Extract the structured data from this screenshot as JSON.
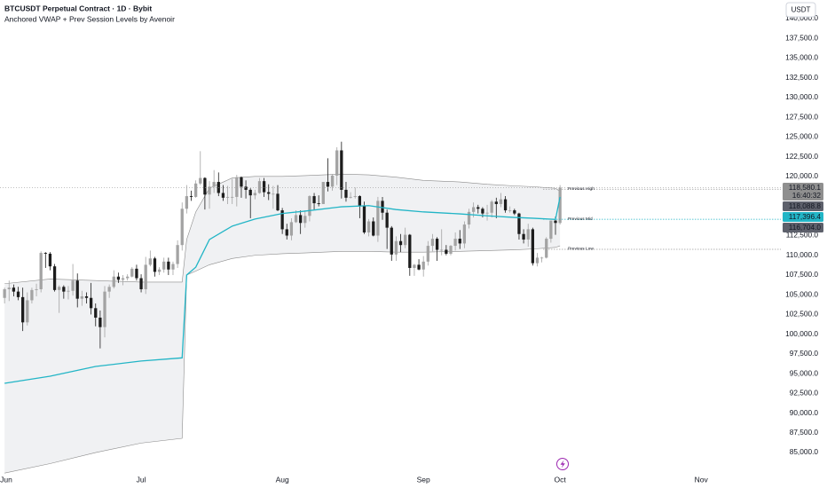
{
  "chart_data": {
    "type": "candlestick",
    "title": "BTCUSDT Perpetual Contract · 1D · Bybit",
    "subtitle": "Anchored VWAP + Prev Session Levels by Avenoir",
    "currency": "USDT",
    "countdown": "16:40:32",
    "up_color": "#a3a3a3",
    "down_color": "#1c1c1c",
    "xlim": [
      -1,
      170.5
    ],
    "xticks": [
      {
        "value": 0,
        "label": "Jun"
      },
      {
        "value": 30,
        "label": "Jul"
      },
      {
        "value": 61,
        "label": "Aug"
      },
      {
        "value": 92,
        "label": "Sep"
      },
      {
        "value": 122,
        "label": "Oct"
      },
      {
        "value": 153,
        "label": "Nov"
      }
    ],
    "ylim": [
      82530,
      142360
    ],
    "yticks": [
      {
        "value": 85000,
        "label": "85,000.0"
      },
      {
        "value": 87500,
        "label": "87,500.0"
      },
      {
        "value": 90000,
        "label": "90,000.0"
      },
      {
        "value": 92500,
        "label": "92,500.0"
      },
      {
        "value": 95000,
        "label": "95,000.0"
      },
      {
        "value": 97500,
        "label": "97,500.0"
      },
      {
        "value": 100000,
        "label": "100,000.0"
      },
      {
        "value": 102500,
        "label": "102,500.0"
      },
      {
        "value": 105000,
        "label": "105,000.0"
      },
      {
        "value": 107500,
        "label": "107,500.0"
      },
      {
        "value": 110000,
        "label": "110,000.0"
      },
      {
        "value": 112500,
        "label": "112,500.0"
      },
      {
        "value": 115000,
        "label": "115,000.0"
      },
      {
        "value": 117500,
        "label": "117,500.0"
      },
      {
        "value": 120000,
        "label": "120,000.0"
      },
      {
        "value": 122500,
        "label": "122,500.0"
      },
      {
        "value": 125000,
        "label": "125,000.0"
      },
      {
        "value": 127500,
        "label": "127,500.0"
      },
      {
        "value": 130000,
        "label": "130,000.0"
      },
      {
        "value": 132500,
        "label": "132,500.0"
      },
      {
        "value": 135000,
        "label": "135,000.0"
      },
      {
        "value": 137500,
        "label": "137,500.0"
      },
      {
        "value": 140000,
        "label": "140,000.0"
      }
    ],
    "x": [
      0,
      1,
      2,
      3,
      4,
      5,
      6,
      7,
      8,
      9,
      10,
      11,
      12,
      13,
      14,
      15,
      16,
      17,
      18,
      19,
      20,
      21,
      22,
      23,
      24,
      25,
      26,
      27,
      28,
      29,
      30,
      31,
      32,
      33,
      34,
      35,
      36,
      37,
      38,
      39,
      40,
      41,
      42,
      43,
      44,
      45,
      46,
      47,
      48,
      49,
      50,
      51,
      52,
      53,
      54,
      55,
      56,
      57,
      58,
      59,
      60,
      61,
      62,
      63,
      64,
      65,
      66,
      67,
      68,
      69,
      70,
      71,
      72,
      73,
      74,
      75,
      76,
      77,
      78,
      79,
      80,
      81,
      82,
      83,
      84,
      85,
      86,
      87,
      88,
      89,
      90,
      91,
      92,
      93,
      94,
      95,
      96,
      97,
      98,
      99,
      100,
      101,
      102,
      103,
      104,
      105,
      106,
      107,
      108,
      109,
      110,
      111,
      112,
      113,
      114,
      115,
      116,
      117,
      118,
      119,
      120,
      121,
      122
    ],
    "open": [
      104600,
      105700,
      105900,
      105400,
      104700,
      101500,
      104300,
      105600,
      105700,
      110300,
      110200,
      108600,
      105600,
      106000,
      105400,
      105500,
      106800,
      104500,
      104800,
      104600,
      103300,
      102100,
      100900,
      105400,
      106000,
      107300,
      106900,
      107100,
      107300,
      108300,
      107100,
      105700,
      108800,
      109600,
      107900,
      108200,
      109200,
      108200,
      108900,
      111300,
      115900,
      117500,
      117400,
      119100,
      119800,
      117700,
      118700,
      119300,
      117900,
      117300,
      117400,
      117400,
      119900,
      118700,
      118300,
      117600,
      117900,
      119400,
      118000,
      117800,
      117800,
      115700,
      113300,
      112500,
      114200,
      115100,
      114100,
      115000,
      117500,
      116600,
      116500,
      119300,
      118700,
      120100,
      123300,
      118300,
      117300,
      117400,
      117500,
      116300,
      112900,
      114300,
      112500,
      116900,
      115400,
      113500,
      110100,
      111800,
      111300,
      112600,
      108400,
      108800,
      108200,
      109200,
      111200,
      112100,
      110700,
      110700,
      110200,
      111200,
      112100,
      111500,
      113900,
      115500,
      116100,
      115900,
      115300,
      115400,
      116800,
      116500,
      117100,
      115700,
      115700,
      115300,
      112700,
      112000,
      113300,
      109000,
      109700,
      109700,
      112100,
      114400,
      114100
    ],
    "high": [
      105900,
      106800,
      106300,
      106000,
      105900,
      105300,
      105900,
      106400,
      110500,
      110400,
      110400,
      108900,
      106200,
      106200,
      106100,
      108900,
      107700,
      105500,
      105300,
      106500,
      103900,
      103000,
      106100,
      106300,
      108100,
      107800,
      107500,
      107600,
      108500,
      108800,
      107600,
      109800,
      110600,
      109800,
      108500,
      109700,
      109700,
      109200,
      111900,
      116700,
      118900,
      118200,
      119500,
      123200,
      119900,
      119400,
      120800,
      120500,
      118900,
      118800,
      119700,
      120200,
      120000,
      119500,
      118500,
      118300,
      119800,
      119800,
      119000,
      118800,
      118900,
      116000,
      114000,
      114700,
      115700,
      115700,
      115700,
      117600,
      117900,
      117600,
      119300,
      122300,
      120300,
      123700,
      124400,
      119300,
      118000,
      118600,
      117600,
      116800,
      114600,
      114800,
      117400,
      117400,
      115800,
      113700,
      112400,
      112700,
      113500,
      112700,
      108900,
      109500,
      109900,
      111800,
      112700,
      112300,
      113300,
      111300,
      111300,
      112900,
      113200,
      114300,
      115900,
      116700,
      116400,
      116100,
      116400,
      117000,
      117300,
      117900,
      117500,
      116200,
      115900,
      115400,
      113300,
      114000,
      113500,
      110300,
      109800,
      112300,
      114400,
      114900,
      118900
    ],
    "low": [
      103900,
      104200,
      104800,
      104300,
      100400,
      101100,
      103900,
      104800,
      105300,
      108400,
      108100,
      105400,
      102700,
      104500,
      104400,
      104900,
      103400,
      103600,
      103900,
      102500,
      101000,
      98200,
      99600,
      104600,
      105800,
      106500,
      106200,
      106800,
      107200,
      106800,
      105300,
      105100,
      108600,
      107300,
      107500,
      107800,
      107500,
      107500,
      108400,
      110600,
      115300,
      116900,
      117300,
      118900,
      115800,
      115900,
      117900,
      117500,
      116900,
      116500,
      116500,
      116200,
      117300,
      117200,
      114700,
      117100,
      117800,
      117400,
      117000,
      115900,
      115600,
      112700,
      112000,
      111900,
      114100,
      112700,
      113500,
      114300,
      115800,
      116200,
      116500,
      118100,
      118200,
      118900,
      117200,
      116800,
      117200,
      117200,
      114700,
      112700,
      112400,
      112400,
      111700,
      114500,
      110800,
      109300,
      109300,
      110400,
      110900,
      107400,
      107400,
      108100,
      107300,
      108700,
      110500,
      109300,
      110000,
      110000,
      110000,
      110600,
      110800,
      110900,
      113400,
      114800,
      115300,
      114800,
      114400,
      114800,
      114700,
      116100,
      115400,
      115400,
      115100,
      112000,
      111500,
      111100,
      108700,
      108600,
      109100,
      109600,
      111600,
      112600,
      113900
    ],
    "close": [
      105700,
      105900,
      105400,
      104700,
      101500,
      104300,
      105600,
      105700,
      110300,
      110200,
      108600,
      105600,
      106000,
      105400,
      105500,
      106800,
      104500,
      104800,
      104600,
      103300,
      102100,
      100900,
      105400,
      106000,
      107300,
      106900,
      107100,
      107300,
      108300,
      107100,
      105700,
      108800,
      109600,
      107900,
      108200,
      109200,
      108200,
      108900,
      111300,
      115900,
      117500,
      117400,
      119100,
      119800,
      117700,
      118700,
      119300,
      117900,
      117300,
      117400,
      117400,
      119900,
      118700,
      118300,
      117600,
      117900,
      119400,
      118000,
      117800,
      117800,
      115700,
      113300,
      112500,
      114200,
      115100,
      114100,
      115000,
      117500,
      116600,
      116500,
      119300,
      118700,
      120100,
      123300,
      118300,
      117300,
      117400,
      117500,
      116300,
      112900,
      114300,
      112500,
      116900,
      115400,
      113500,
      110100,
      111800,
      111300,
      112600,
      108400,
      108800,
      108200,
      109200,
      111200,
      112100,
      110700,
      110700,
      110200,
      111200,
      112100,
      111500,
      113900,
      115500,
      116100,
      115900,
      115300,
      115400,
      116800,
      116500,
      117100,
      115700,
      115700,
      115300,
      112700,
      112000,
      113300,
      109000,
      109700,
      109700,
      112100,
      114400,
      114100,
      118580.1
    ],
    "bands": {
      "x": [
        0,
        10,
        20,
        30,
        39,
        40,
        42,
        45,
        50,
        55,
        61,
        66,
        74,
        80,
        86,
        92,
        100,
        106,
        112,
        116,
        121,
        122
      ],
      "fill": "#f0f1f3",
      "band_color": "#8a8a8a",
      "vwap_color": "#22b5c6",
      "vwap": [
        93780,
        94680,
        95910,
        96600,
        97000,
        107500,
        108500,
        112000,
        113700,
        114600,
        115300,
        115600,
        116150,
        116300,
        115800,
        115500,
        115250,
        115000,
        114800,
        114700,
        114550,
        117396.4
      ],
      "upper": [
        106400,
        107000,
        106800,
        106600,
        106600,
        112000,
        115500,
        118500,
        119800,
        120000,
        120000,
        120100,
        120300,
        120200,
        119900,
        119500,
        119300,
        119000,
        118800,
        118700,
        118500,
        118088.8
      ],
      "lower": [
        82400,
        83600,
        85000,
        86200,
        86800,
        107500,
        108000,
        108800,
        109600,
        110000,
        110200,
        110300,
        110500,
        110500,
        110400,
        110400,
        110500,
        110600,
        110700,
        110800,
        111000,
        111200
      ]
    },
    "levels": [
      {
        "name": "Previous High",
        "value": 118380,
        "color": "#9a9a9a"
      },
      {
        "name": "Previous Mid",
        "value": 114570,
        "color": "#22b5c6"
      },
      {
        "name": "Previous Low",
        "value": 110760,
        "color": "#9a9a9a"
      }
    ],
    "price_labels": [
      {
        "value": 118580.1,
        "label": "118,580.1",
        "color": "#8f8f8f"
      },
      {
        "value": 118088.8,
        "label": "118,088.8",
        "color": "#5d606b"
      },
      {
        "value": 117396.4,
        "label": "117,396.4",
        "color": "#22b5c6"
      },
      {
        "value": 116704.0,
        "label": "116,704.0",
        "color": "#5d606b"
      }
    ]
  }
}
